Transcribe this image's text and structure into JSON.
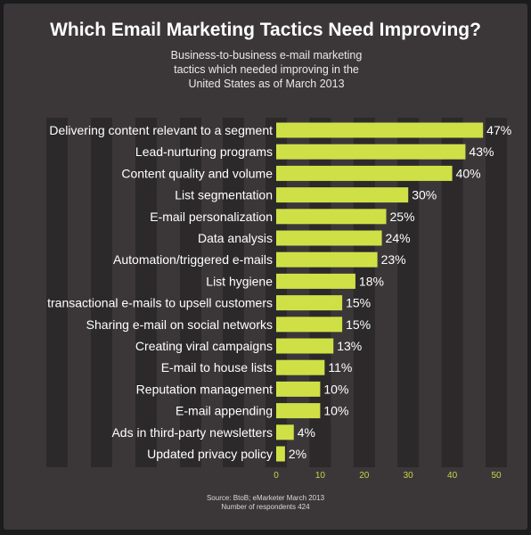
{
  "chart_data": {
    "type": "bar",
    "orientation": "horizontal",
    "title": "Which Email Marketing Tactics Need Improving?",
    "subtitle_lines": [
      "Business-to-business e-mail marketing",
      "tactics which needed improving in the",
      "United States as of March 2013"
    ],
    "categories": [
      "Delivering content relevant to a segment",
      "Lead-nurturing programs",
      "Content quality and volume",
      "List segmentation",
      "E-mail personalization",
      "Data analysis",
      "Automation/triggered e-mails",
      "List hygiene",
      "transactional e-mails to upsell customers",
      "Sharing e-mail on social networks",
      "Creating viral campaigns",
      "E-mail to house lists",
      "Reputation management",
      "E-mail appending",
      "Ads in third-party newsletters",
      "Updated privacy policy"
    ],
    "values": [
      47,
      43,
      40,
      30,
      25,
      24,
      23,
      18,
      15,
      15,
      13,
      11,
      10,
      10,
      4,
      2
    ],
    "value_labels": [
      "47%",
      "43%",
      "40%",
      "30%",
      "25%",
      "24%",
      "23%",
      "18%",
      "15%",
      "15%",
      "13%",
      "11%",
      "10%",
      "10%",
      "4%",
      "2%"
    ],
    "xlim": [
      0,
      50
    ],
    "xticks": [
      0,
      10,
      20,
      30,
      40,
      50
    ],
    "xtick_labels": [
      "0",
      "10",
      "20",
      "30",
      "40",
      "50"
    ],
    "grid": true,
    "bar_color": "#cfe047",
    "source_lines": [
      "Source: BtoB; eMarketer March 2013",
      "Number of respondents 424"
    ]
  },
  "colors": {
    "background": "#3b3739",
    "grid_band": "#2c292b",
    "tick_label": "#c8d445",
    "text": "#ffffff"
  }
}
